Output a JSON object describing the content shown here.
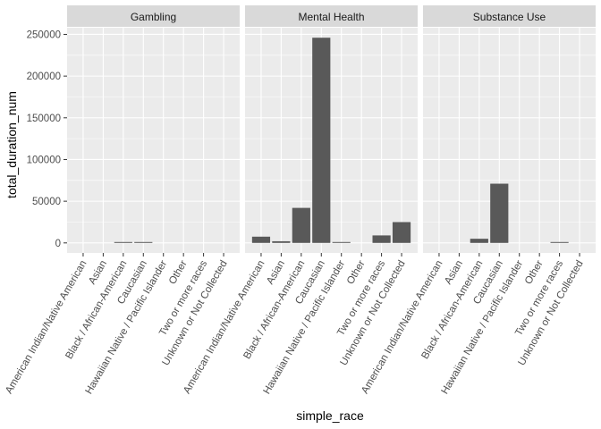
{
  "chart_data": {
    "type": "bar",
    "xlabel": "simple_race",
    "ylabel": "total_duration_num",
    "ylim": [
      -12000,
      258000
    ],
    "yticks": [
      0,
      50000,
      100000,
      150000,
      200000,
      250000
    ],
    "ytick_labels": [
      "0",
      "50000",
      "100000",
      "150000",
      "200000",
      "250000"
    ],
    "grid": true,
    "bar_color": "#595959",
    "panel_background": "#ebebeb",
    "strip_background": "#d9d9d9",
    "categories": [
      "American Indian/Native American",
      "Asian",
      "Black / African-American",
      "Caucasian",
      "Hawaiian Native / Pacific Islander",
      "Other",
      "Two or more races",
      "Unknown or Not Collected"
    ],
    "panels": [
      {
        "name": "Gambling",
        "values": [
          0,
          0,
          400,
          300,
          0,
          0,
          0,
          0
        ]
      },
      {
        "name": "Mental Health",
        "values": [
          7500,
          2000,
          42000,
          246000,
          1000,
          0,
          9000,
          25000
        ]
      },
      {
        "name": "Substance Use",
        "values": [
          0,
          0,
          5000,
          71000,
          0,
          0,
          800,
          0
        ]
      }
    ]
  }
}
